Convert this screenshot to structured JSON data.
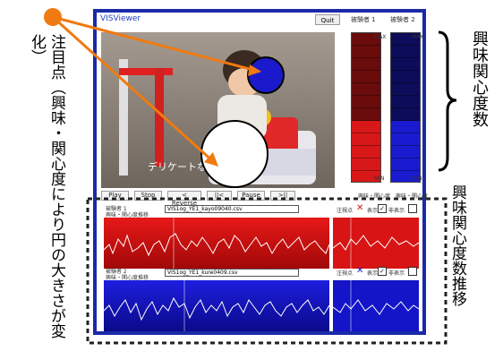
{
  "app": {
    "title": "VISViewer",
    "quit_label": "Quit"
  },
  "meters": {
    "left_label": "被験者 1",
    "right_label": "被験者 2",
    "max_label": "MAX",
    "min_label": "MIN",
    "left_caption": "興味・関心度",
    "right_caption": "興味・関心度",
    "left_level": 0.45,
    "right_level": 0.42
  },
  "video": {
    "subtitle": "デリケートな子の扱いやり"
  },
  "controls": [
    "Play",
    "Stop",
    "< Reverse",
    "||<",
    "Pause",
    ">||"
  ],
  "subjects": [
    {
      "label": "被験者 1",
      "sublabel": "興味・関心度推移",
      "file": "VIS1og_YE1_kayo09040.csv",
      "attn_label": "注視点",
      "show_label": "表示",
      "hide_label": "非表示"
    },
    {
      "label": "被験者 2",
      "sublabel": "興味・関心度推移",
      "file": "VIS1og_YE1_kure0409.csv",
      "attn_label": "注視点",
      "show_label": "表示",
      "hide_label": "非表示"
    }
  ],
  "annotations": {
    "left_text": "注目点（興味・関心度により円の大きさが変化）",
    "right_top": "興味関心度数",
    "right_bottom": "興味関心度数推移"
  },
  "colors": {
    "frame": "#1a2aa8",
    "red": "#d81818",
    "blue": "#1a1ad0",
    "marker": "#f07a10"
  }
}
